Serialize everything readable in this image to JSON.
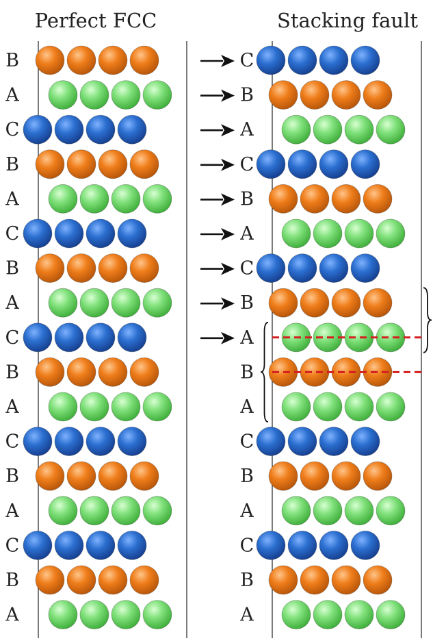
{
  "left_title": "Perfect FCC",
  "right_title": "Stacking fault",
  "colors": {
    "A": "#5fd35a",
    "B": "#e4700e",
    "C": "#1f5fc2",
    "line": "#333333",
    "fault_line": "#d42020"
  },
  "layer_types": {
    "A": {
      "label": "A",
      "color_key": "A"
    },
    "B": {
      "label": "B",
      "color_key": "B"
    },
    "C": {
      "label": "C",
      "color_key": "C"
    }
  },
  "left_sequence": [
    "B",
    "A",
    "C",
    "B",
    "A",
    "C",
    "B",
    "A",
    "C",
    "B",
    "A",
    "C",
    "B",
    "A",
    "C",
    "B",
    "A"
  ],
  "right_sequence": [
    "C",
    "B",
    "A",
    "C",
    "B",
    "A",
    "C",
    "B",
    "A",
    "B",
    "A",
    "C",
    "B",
    "A",
    "C",
    "B",
    "A"
  ],
  "atoms_per_row": 4,
  "arrow_count": 9,
  "fault_rows": [
    8,
    9
  ],
  "fault_brace_left_rows": [
    8,
    10
  ],
  "fault_brace_right_rows": [
    7,
    8
  ]
}
